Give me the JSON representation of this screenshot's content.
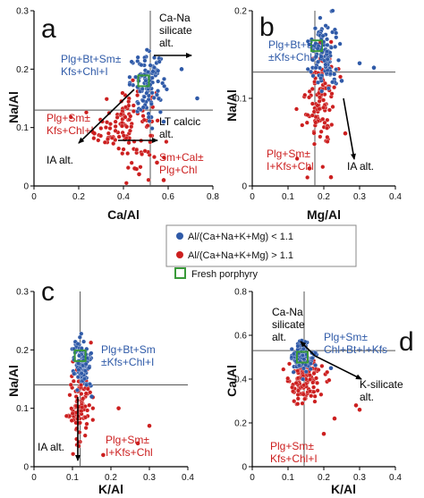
{
  "colors": {
    "blue": "#2f5aa8",
    "red": "#cc1f1f",
    "green": "#3a9a3a",
    "axis": "#000000"
  },
  "legend": {
    "blue_label": "Al/(Ca+Na+K+Mg) < 1.1",
    "red_label": "Al/(Ca+Na+K+Mg) > 1.1",
    "green_label": "Fresh porphyry"
  },
  "chart_data": [
    {
      "type": "scatter",
      "panel": "a",
      "xlabel": "Ca/Al",
      "ylabel": "Na/Al",
      "xlim": [
        0,
        0.8
      ],
      "ylim": [
        0,
        0.3
      ],
      "xticks": [
        "0",
        "0.2",
        "0.4",
        "0.6",
        "0.8"
      ],
      "yticks": [
        "0",
        "0.1",
        "0.2",
        "0.3"
      ],
      "refline_x": 0.52,
      "refline_y": 0.13,
      "fresh": [
        0.49,
        0.18
      ],
      "blue_cluster": {
        "cx": 0.51,
        "cy": 0.175,
        "sx": 0.04,
        "sy": 0.025,
        "n": 110
      },
      "red_cluster": {
        "cx": 0.41,
        "cy": 0.105,
        "sx": 0.07,
        "sy": 0.035,
        "n": 120
      },
      "outliers_blue": [
        [
          0.73,
          0.15
        ],
        [
          0.58,
          0.11
        ],
        [
          0.66,
          0.2
        ]
      ],
      "outliers_red": [
        [
          0.47,
          0.02
        ],
        [
          0.45,
          0.03
        ],
        [
          0.27,
          0.09
        ],
        [
          0.58,
          0.01
        ],
        [
          0.55,
          0.04
        ]
      ],
      "annotations": [
        {
          "lines": [
            "Plg+Bt+Sm±",
            "Kfs+Chl+I"
          ],
          "color": "blue"
        },
        {
          "lines": [
            "Plg+Sm±",
            "Kfs+Chl+I"
          ],
          "color": "red"
        },
        {
          "lines": [
            "Sm+Cal±",
            "Plg+Chl"
          ],
          "color": "red"
        },
        {
          "lines": [
            "Ca-Na",
            "silicate",
            "alt."
          ],
          "color": "black"
        },
        {
          "lines": [
            "LT calcic",
            "alt."
          ],
          "color": "black"
        },
        {
          "lines": [
            "IA alt."
          ],
          "color": "black"
        }
      ]
    },
    {
      "type": "scatter",
      "panel": "b",
      "xlabel": "Mg/Al",
      "ylabel": "Na/Al",
      "xlim": [
        0,
        0.4
      ],
      "ylim": [
        0,
        0.2
      ],
      "xticks": [
        "0",
        "0.1",
        "0.2",
        "0.3",
        "0.4"
      ],
      "yticks": [
        "0",
        "0.1",
        "0.2"
      ],
      "refline_x": 0.175,
      "refline_y": 0.13,
      "fresh": [
        0.18,
        0.16
      ],
      "blue_cluster": {
        "cx": 0.2,
        "cy": 0.15,
        "sx": 0.02,
        "sy": 0.02,
        "n": 110
      },
      "red_cluster": {
        "cx": 0.19,
        "cy": 0.1,
        "sx": 0.02,
        "sy": 0.03,
        "n": 110
      },
      "outliers_blue": [
        [
          0.3,
          0.14
        ],
        [
          0.34,
          0.135
        ],
        [
          0.25,
          0.12
        ]
      ],
      "outliers_red": [
        [
          0.22,
          0.01
        ],
        [
          0.26,
          0.06
        ],
        [
          0.16,
          0.02
        ]
      ],
      "annotations": [
        {
          "lines": [
            "Plg+Bt+Sm",
            "±Kfs+Chl+I"
          ],
          "color": "blue"
        },
        {
          "lines": [
            "Plg+Sm±",
            "I+Kfs+Chl"
          ],
          "color": "red"
        },
        {
          "lines": [
            "IA alt."
          ],
          "color": "black"
        }
      ]
    },
    {
      "type": "scatter",
      "panel": "c",
      "xlabel": "K/Al",
      "ylabel": "Na/Al",
      "xlim": [
        0,
        0.4
      ],
      "ylim": [
        0,
        0.3
      ],
      "xticks": [
        "0",
        "0.1",
        "0.2",
        "0.3",
        "0.4"
      ],
      "yticks": [
        "0",
        "0.1",
        "0.2",
        "0.3"
      ],
      "refline_x": 0.12,
      "refline_y": 0.14,
      "fresh": [
        0.12,
        0.19
      ],
      "blue_cluster": {
        "cx": 0.125,
        "cy": 0.175,
        "sx": 0.012,
        "sy": 0.02,
        "n": 110
      },
      "red_cluster": {
        "cx": 0.12,
        "cy": 0.11,
        "sx": 0.015,
        "sy": 0.04,
        "n": 120
      },
      "outliers_blue": [
        [
          0.15,
          0.12
        ]
      ],
      "outliers_red": [
        [
          0.3,
          0.07
        ],
        [
          0.22,
          0.1
        ],
        [
          0.27,
          0.04
        ],
        [
          0.18,
          0.02
        ]
      ],
      "annotations": [
        {
          "lines": [
            "Plg+Bt+Sm",
            "±Kfs+Chl+I"
          ],
          "color": "blue"
        },
        {
          "lines": [
            "Plg+Sm±",
            "I+Kfs+Chl"
          ],
          "color": "red"
        },
        {
          "lines": [
            "IA alt."
          ],
          "color": "black"
        }
      ]
    },
    {
      "type": "scatter",
      "panel": "d",
      "xlabel": "K/Al",
      "ylabel": "Ca/Al",
      "xlim": [
        0,
        0.4
      ],
      "ylim": [
        0,
        0.8
      ],
      "xticks": [
        "0",
        "0.1",
        "0.2",
        "0.3",
        "0.4"
      ],
      "yticks": [
        "0",
        "0.2",
        "0.4",
        "0.6",
        "0.8"
      ],
      "refline_x": 0.145,
      "refline_y": 0.53,
      "fresh": [
        0.14,
        0.5
      ],
      "blue_cluster": {
        "cx": 0.14,
        "cy": 0.5,
        "sx": 0.015,
        "sy": 0.03,
        "n": 100
      },
      "red_cluster": {
        "cx": 0.145,
        "cy": 0.39,
        "sx": 0.025,
        "sy": 0.055,
        "n": 120
      },
      "outliers_blue": [
        [
          0.22,
          0.45
        ]
      ],
      "outliers_red": [
        [
          0.29,
          0.28
        ],
        [
          0.3,
          0.26
        ],
        [
          0.23,
          0.22
        ],
        [
          0.2,
          0.15
        ]
      ],
      "annotations": [
        {
          "lines": [
            "Ca-Na",
            "silicate",
            "alt."
          ],
          "color": "black"
        },
        {
          "lines": [
            "Plg+Sm±",
            "Chl+Bt+I+Kfs"
          ],
          "color": "blue"
        },
        {
          "lines": [
            "K-silicate",
            "alt."
          ],
          "color": "black"
        },
        {
          "lines": [
            "Plg+Sm±",
            "Kfs+Chl+I"
          ],
          "color": "red"
        }
      ]
    }
  ]
}
